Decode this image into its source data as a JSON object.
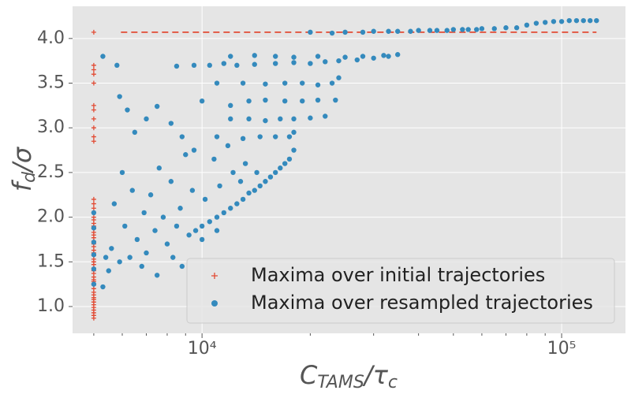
{
  "chart_data": {
    "type": "scatter",
    "xlabel": {
      "parts": [
        "C",
        "TAMS",
        "/τ",
        "c"
      ]
    },
    "ylabel": {
      "parts": [
        "f",
        "d",
        "/σ"
      ]
    },
    "xscale": "log",
    "xlim": [
      4365,
      150500
    ],
    "ylim": [
      0.7,
      4.36
    ],
    "xticks": [
      {
        "value": 10000,
        "label": "10⁴"
      },
      {
        "value": 100000,
        "label": "10⁵"
      }
    ],
    "xminorticks": [
      5000,
      6000,
      7000,
      8000,
      9000,
      20000,
      30000,
      40000,
      50000,
      60000,
      70000,
      80000,
      90000
    ],
    "yticks": [
      {
        "value": 1,
        "label": "1.0"
      },
      1.5,
      {
        "value": 2,
        "label": "2.0"
      },
      2.5,
      {
        "value": 3,
        "label": "3.0"
      },
      3.5,
      {
        "value": 4,
        "label": "4.0"
      }
    ],
    "grid": true,
    "legend": "lower right",
    "reference_line": {
      "y": 4.07,
      "x": [
        5950,
        125000
      ],
      "color": "#E24A33"
    },
    "series": [
      {
        "name": "Maxima over initial trajectories",
        "color": "#E24A33",
        "marker": "plus",
        "x": [
          5000,
          5000,
          5000,
          5000,
          5000,
          5000,
          5000,
          5000,
          5000,
          5000,
          5000,
          5000,
          5000,
          5000,
          5000,
          5000,
          5000,
          5000,
          5000,
          5000,
          5000,
          5000,
          5000,
          5000,
          5000,
          5000,
          5000,
          5000,
          5000,
          5000,
          5000,
          5000,
          5000,
          5000,
          5000,
          5000,
          5000,
          5000,
          5000,
          5000,
          5000,
          5000,
          5000,
          5000,
          5000,
          5000,
          5000,
          5000,
          5000,
          5000,
          5000
        ],
        "values": [
          0.87,
          0.9,
          0.93,
          0.96,
          0.99,
          1.02,
          1.05,
          1.08,
          1.1,
          1.13,
          1.16,
          1.2,
          1.24,
          1.28,
          1.3,
          1.33,
          1.37,
          1.4,
          1.43,
          1.47,
          1.5,
          1.53,
          1.57,
          1.6,
          1.63,
          1.67,
          1.7,
          1.73,
          1.77,
          1.8,
          1.83,
          1.87,
          1.9,
          1.93,
          1.97,
          2.0,
          2.05,
          2.1,
          2.15,
          2.2,
          2.85,
          2.9,
          3.0,
          3.1,
          3.2,
          3.25,
          3.5,
          3.6,
          3.65,
          3.7,
          4.07
        ]
      },
      {
        "name": "Maxima over resampled trajectories",
        "color": "#348ABD",
        "marker": "dot",
        "x": [
          5000,
          5000,
          5000,
          5000,
          5000,
          5000,
          5300,
          5400,
          5500,
          5600,
          5300,
          5800,
          5900,
          6200,
          5700,
          5900,
          6100,
          6300,
          6000,
          6400,
          6600,
          6800,
          6900,
          7000,
          7200,
          7400,
          7500,
          7600,
          7800,
          8000,
          8200,
          8300,
          8500,
          8700,
          8800,
          9000,
          9200,
          9400,
          6500,
          7000,
          7500,
          8200,
          8800,
          9500,
          9600,
          10000,
          10500,
          11000,
          11500,
          12000,
          12500,
          13000,
          13500,
          14000,
          14500,
          15000,
          15500,
          16000,
          16500,
          17000,
          17500,
          18000,
          10200,
          11200,
          12200,
          13200,
          10800,
          11800,
          12800,
          14200,
          10000,
          11000,
          8500,
          9500,
          10500,
          11500,
          12500,
          14000,
          16000,
          18000,
          20000,
          22000,
          24000,
          27000,
          30000,
          33000,
          35000,
          12000,
          14000,
          16000,
          18000,
          21000,
          25000,
          28000,
          32000,
          11000,
          13000,
          15000,
          17000,
          19000,
          21000,
          23000,
          24000,
          10000,
          12000,
          13500,
          15000,
          17000,
          19000,
          21000,
          23500,
          12000,
          13500,
          15000,
          16500,
          18000,
          20000,
          22000,
          11000,
          13000,
          14500,
          16000,
          17500,
          18000,
          20000,
          25000,
          30000,
          35000,
          40000,
          45000,
          50000,
          55000,
          60000,
          65000,
          70000,
          75000,
          80000,
          85000,
          90000,
          95000,
          100000,
          105000,
          110000,
          115000,
          120000,
          125000,
          23000,
          28000,
          33000,
          38000,
          43000,
          48000,
          53000,
          58000
        ],
        "values": [
          1.25,
          1.42,
          1.58,
          1.72,
          1.88,
          2.05,
          1.22,
          1.55,
          1.4,
          1.65,
          3.8,
          3.7,
          3.35,
          3.2,
          2.15,
          1.5,
          1.9,
          1.55,
          2.5,
          2.3,
          1.75,
          1.45,
          2.05,
          1.6,
          2.25,
          1.85,
          1.35,
          2.55,
          2.0,
          1.7,
          2.4,
          1.55,
          1.9,
          2.1,
          1.45,
          2.7,
          1.8,
          2.3,
          2.95,
          3.1,
          3.24,
          3.05,
          2.9,
          2.75,
          1.85,
          1.9,
          1.95,
          2.0,
          2.05,
          2.1,
          2.15,
          2.2,
          2.27,
          2.3,
          2.35,
          2.4,
          2.45,
          2.5,
          2.55,
          2.6,
          2.65,
          2.75,
          2.2,
          2.35,
          2.5,
          2.6,
          2.65,
          2.8,
          2.4,
          2.5,
          1.75,
          1.85,
          3.69,
          3.7,
          3.7,
          3.72,
          3.7,
          3.71,
          3.72,
          3.73,
          3.72,
          3.74,
          3.75,
          3.76,
          3.78,
          3.8,
          3.82,
          3.8,
          3.81,
          3.8,
          3.79,
          3.8,
          3.79,
          3.8,
          3.81,
          3.5,
          3.5,
          3.49,
          3.5,
          3.5,
          3.48,
          3.5,
          3.56,
          3.3,
          3.25,
          3.3,
          3.31,
          3.3,
          3.3,
          3.31,
          3.31,
          3.1,
          3.1,
          3.08,
          3.1,
          3.1,
          3.11,
          3.13,
          2.9,
          2.88,
          2.9,
          2.9,
          2.9,
          2.95,
          4.07,
          4.07,
          4.08,
          4.08,
          4.09,
          4.09,
          4.1,
          4.1,
          4.11,
          4.11,
          4.12,
          4.12,
          4.15,
          4.17,
          4.18,
          4.19,
          4.19,
          4.2,
          4.2,
          4.2,
          4.2,
          4.2,
          4.06,
          4.07,
          4.08,
          4.08,
          4.09,
          4.09,
          4.1,
          4.1
        ]
      }
    ]
  }
}
